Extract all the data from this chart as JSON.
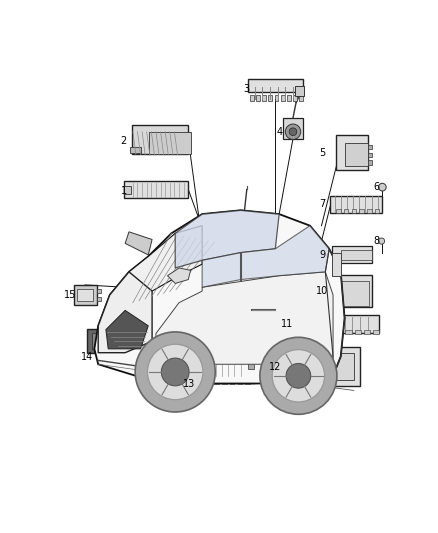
{
  "background_color": "#ffffff",
  "fig_width": 4.38,
  "fig_height": 5.33,
  "dpi": 100,
  "car": {
    "body_color": "#f8f8f8",
    "edge_color": "#111111",
    "window_color": "#e8e8e8",
    "wheel_outer": "#888888",
    "wheel_inner": "#cccccc",
    "wheel_hub": "#555555"
  },
  "modules": {
    "fill": "#e8e8e8",
    "edge": "#222222",
    "dark_fill": "#555555"
  },
  "line_color": "#111111",
  "label_fontsize": 7,
  "label_color": "#000000"
}
